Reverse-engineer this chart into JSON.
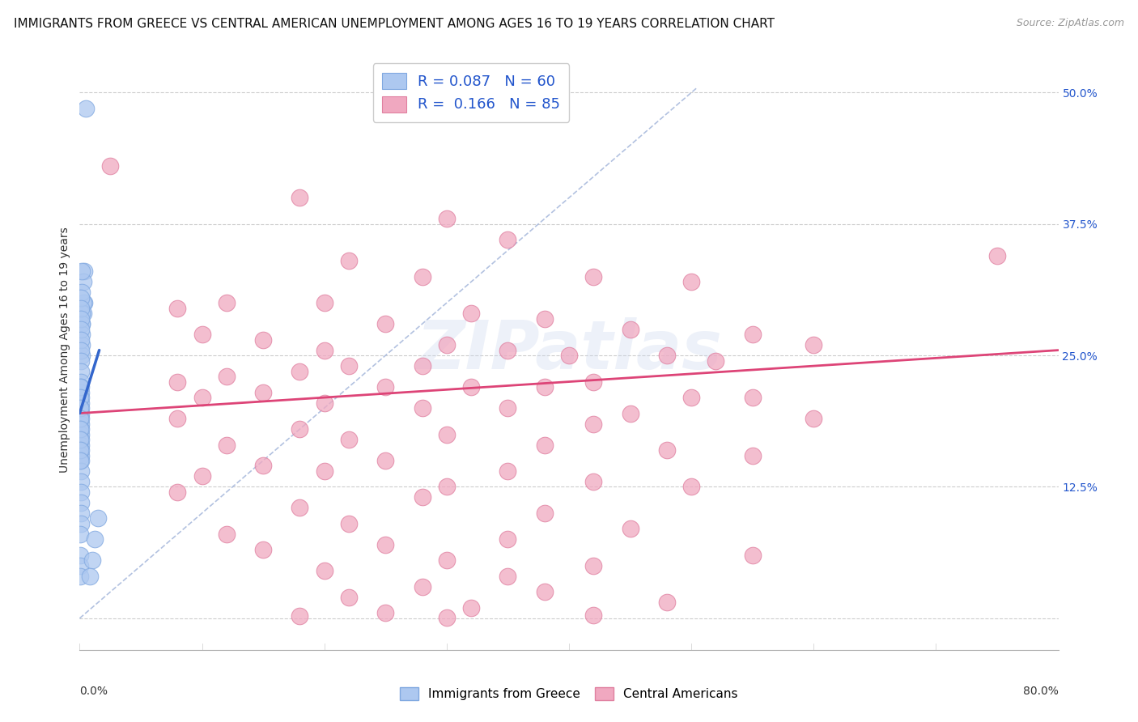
{
  "title": "IMMIGRANTS FROM GREECE VS CENTRAL AMERICAN UNEMPLOYMENT AMONG AGES 16 TO 19 YEARS CORRELATION CHART",
  "source": "Source: ZipAtlas.com",
  "ylabel": "Unemployment Among Ages 16 to 19 years",
  "xlim": [
    0.0,
    0.8
  ],
  "ylim": [
    -0.03,
    0.54
  ],
  "yticks": [
    0.0,
    0.125,
    0.25,
    0.375,
    0.5
  ],
  "ytick_labels": [
    "",
    "12.5%",
    "25.0%",
    "37.5%",
    "50.0%"
  ],
  "legend_blue_R": "0.087",
  "legend_blue_N": "60",
  "legend_pink_R": "0.166",
  "legend_pink_N": "85",
  "blue_color": "#adc8f0",
  "pink_color": "#f0a8c0",
  "blue_edge_color": "#80a8e0",
  "pink_edge_color": "#e080a0",
  "blue_line_color": "#3366cc",
  "pink_line_color": "#dd4477",
  "diag_color": "#aabbdd",
  "watermark": "ZIPatlas",
  "background_color": "#ffffff",
  "grid_color": "#cccccc",
  "title_fontsize": 11,
  "source_fontsize": 9,
  "axis_label_fontsize": 10,
  "tick_fontsize": 10,
  "legend_fontsize": 12,
  "blue_points_x": [
    0.005,
    0.004,
    0.004,
    0.003,
    0.003,
    0.003,
    0.002,
    0.002,
    0.002,
    0.002,
    0.002,
    0.002,
    0.002,
    0.002,
    0.001,
    0.001,
    0.001,
    0.001,
    0.001,
    0.001,
    0.001,
    0.001,
    0.001,
    0.001,
    0.001,
    0.001,
    0.001,
    0.001,
    0.001,
    0.001,
    0.001,
    0.001,
    0.001,
    0.001,
    0.001,
    0.001,
    0.001,
    0.001,
    0.001,
    0.001,
    0.001,
    0.001,
    0.001,
    0.001,
    0.0005,
    0.0005,
    0.0005,
    0.0005,
    0.0005,
    0.0005,
    0.0005,
    0.0005,
    0.0005,
    0.0005,
    0.0005,
    0.0005,
    0.015,
    0.012,
    0.01,
    0.008
  ],
  "blue_points_y": [
    0.485,
    0.33,
    0.3,
    0.32,
    0.3,
    0.29,
    0.33,
    0.31,
    0.29,
    0.28,
    0.28,
    0.27,
    0.26,
    0.25,
    0.305,
    0.295,
    0.285,
    0.275,
    0.265,
    0.255,
    0.245,
    0.235,
    0.225,
    0.215,
    0.205,
    0.195,
    0.185,
    0.175,
    0.165,
    0.155,
    0.22,
    0.21,
    0.2,
    0.19,
    0.18,
    0.17,
    0.16,
    0.15,
    0.14,
    0.13,
    0.12,
    0.11,
    0.1,
    0.09,
    0.22,
    0.21,
    0.2,
    0.19,
    0.18,
    0.17,
    0.16,
    0.15,
    0.06,
    0.05,
    0.04,
    0.08,
    0.095,
    0.075,
    0.055,
    0.04
  ],
  "pink_points_x": [
    0.025,
    0.18,
    0.3,
    0.35,
    0.22,
    0.28,
    0.42,
    0.5,
    0.12,
    0.2,
    0.08,
    0.32,
    0.38,
    0.25,
    0.45,
    0.55,
    0.1,
    0.15,
    0.3,
    0.6,
    0.2,
    0.35,
    0.4,
    0.48,
    0.52,
    0.28,
    0.22,
    0.18,
    0.12,
    0.08,
    0.42,
    0.38,
    0.32,
    0.25,
    0.15,
    0.5,
    0.55,
    0.1,
    0.2,
    0.28,
    0.35,
    0.45,
    0.08,
    0.6,
    0.42,
    0.18,
    0.3,
    0.22,
    0.38,
    0.12,
    0.48,
    0.55,
    0.25,
    0.15,
    0.35,
    0.2,
    0.1,
    0.42,
    0.3,
    0.5,
    0.08,
    0.28,
    0.18,
    0.38,
    0.22,
    0.45,
    0.12,
    0.35,
    0.25,
    0.15,
    0.55,
    0.3,
    0.42,
    0.2,
    0.35,
    0.28,
    0.38,
    0.22,
    0.48,
    0.32,
    0.25,
    0.42,
    0.18,
    0.3,
    0.75
  ],
  "pink_points_y": [
    0.43,
    0.4,
    0.38,
    0.36,
    0.34,
    0.325,
    0.325,
    0.32,
    0.3,
    0.3,
    0.295,
    0.29,
    0.285,
    0.28,
    0.275,
    0.27,
    0.27,
    0.265,
    0.26,
    0.26,
    0.255,
    0.255,
    0.25,
    0.25,
    0.245,
    0.24,
    0.24,
    0.235,
    0.23,
    0.225,
    0.225,
    0.22,
    0.22,
    0.22,
    0.215,
    0.21,
    0.21,
    0.21,
    0.205,
    0.2,
    0.2,
    0.195,
    0.19,
    0.19,
    0.185,
    0.18,
    0.175,
    0.17,
    0.165,
    0.165,
    0.16,
    0.155,
    0.15,
    0.145,
    0.14,
    0.14,
    0.135,
    0.13,
    0.125,
    0.125,
    0.12,
    0.115,
    0.105,
    0.1,
    0.09,
    0.085,
    0.08,
    0.075,
    0.07,
    0.065,
    0.06,
    0.055,
    0.05,
    0.045,
    0.04,
    0.03,
    0.025,
    0.02,
    0.015,
    0.01,
    0.005,
    0.003,
    0.002,
    0.001,
    0.345
  ],
  "blue_line_x": [
    0.0,
    0.016
  ],
  "blue_line_y": [
    0.195,
    0.255
  ],
  "pink_line_x": [
    0.0,
    0.8
  ],
  "pink_line_y": [
    0.195,
    0.255
  ],
  "diag_line_x": [
    0.0,
    0.505
  ],
  "diag_line_y": [
    0.0,
    0.505
  ]
}
